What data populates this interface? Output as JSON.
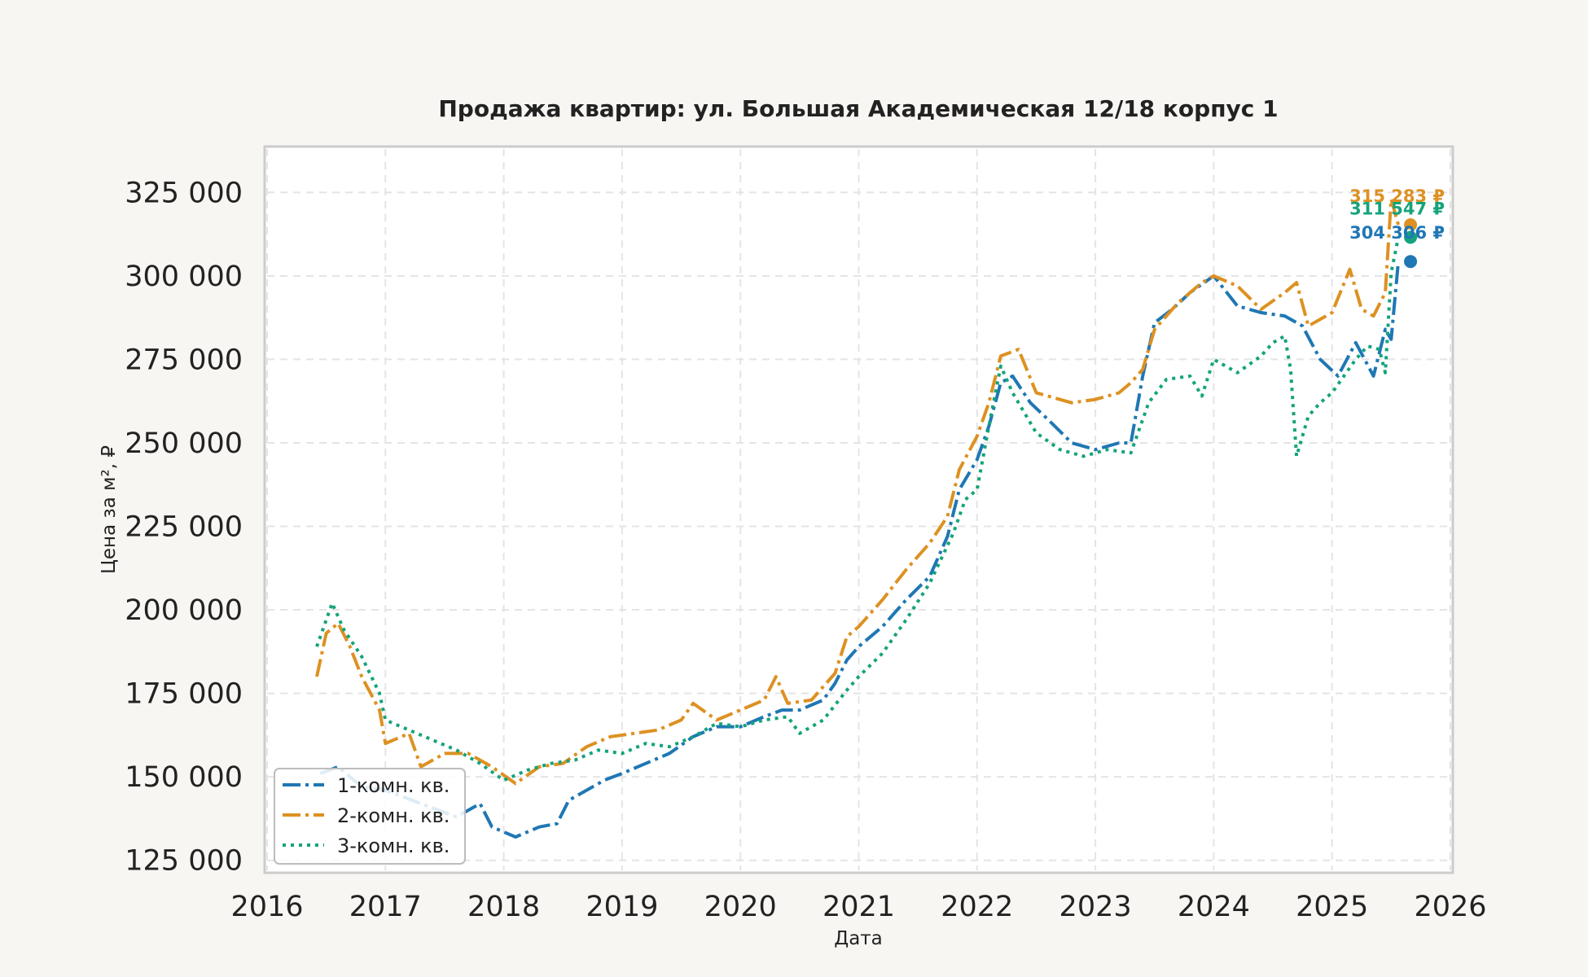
{
  "chart_data": {
    "type": "line",
    "title": "Продажа квартир: ул. Большая Академическая 12/18 корпус 1",
    "xlabel": "Дата",
    "ylabel": "Цена за м², ₽",
    "xlim": [
      2016,
      2026
    ],
    "ylim": [
      122000,
      338000
    ],
    "x_ticks": [
      "2016",
      "2017",
      "2018",
      "2019",
      "2020",
      "2021",
      "2022",
      "2023",
      "2024",
      "2025",
      "2026"
    ],
    "y_ticks": [
      "125 000",
      "150 000",
      "175 000",
      "200 000",
      "225 000",
      "250 000",
      "275 000",
      "300 000",
      "325 000"
    ],
    "grid": true,
    "legend_position": "lower-left",
    "series": [
      {
        "name": "1-комн. кв.",
        "color": "#1f77b4",
        "dash": "dashdot",
        "end_label": "304 306 ₽",
        "end_value": 304306,
        "points": [
          [
            2016.45,
            151000
          ],
          [
            2016.6,
            153000
          ],
          [
            2016.8,
            147000
          ],
          [
            2017.0,
            146000
          ],
          [
            2017.3,
            142000
          ],
          [
            2017.6,
            138000
          ],
          [
            2017.8,
            142000
          ],
          [
            2017.9,
            135000
          ],
          [
            2018.1,
            132000
          ],
          [
            2018.3,
            135000
          ],
          [
            2018.45,
            136000
          ],
          [
            2018.55,
            143000
          ],
          [
            2018.7,
            146000
          ],
          [
            2018.85,
            149000
          ],
          [
            2019.0,
            151000
          ],
          [
            2019.2,
            154000
          ],
          [
            2019.4,
            157000
          ],
          [
            2019.6,
            162000
          ],
          [
            2019.8,
            165000
          ],
          [
            2020.0,
            165000
          ],
          [
            2020.2,
            168000
          ],
          [
            2020.35,
            170000
          ],
          [
            2020.5,
            170000
          ],
          [
            2020.7,
            173000
          ],
          [
            2020.8,
            178000
          ],
          [
            2020.9,
            185000
          ],
          [
            2021.0,
            189000
          ],
          [
            2021.2,
            195000
          ],
          [
            2021.4,
            203000
          ],
          [
            2021.6,
            210000
          ],
          [
            2021.75,
            222000
          ],
          [
            2021.85,
            236000
          ],
          [
            2022.0,
            245000
          ],
          [
            2022.1,
            255000
          ],
          [
            2022.2,
            268000
          ],
          [
            2022.3,
            270000
          ],
          [
            2022.45,
            262000
          ],
          [
            2022.6,
            257000
          ],
          [
            2022.8,
            250000
          ],
          [
            2023.0,
            248000
          ],
          [
            2023.2,
            250000
          ],
          [
            2023.3,
            250000
          ],
          [
            2023.4,
            270000
          ],
          [
            2023.5,
            286000
          ],
          [
            2023.65,
            290000
          ],
          [
            2023.8,
            295000
          ],
          [
            2024.0,
            300000
          ],
          [
            2024.2,
            291000
          ],
          [
            2024.4,
            289000
          ],
          [
            2024.6,
            288000
          ],
          [
            2024.75,
            285000
          ],
          [
            2024.9,
            275000
          ],
          [
            2025.05,
            270000
          ],
          [
            2025.2,
            280000
          ],
          [
            2025.35,
            270000
          ],
          [
            2025.45,
            284000
          ],
          [
            2025.5,
            281000
          ],
          [
            2025.56,
            304306
          ]
        ]
      },
      {
        "name": "2-комн. кв.",
        "color": "#dd9122",
        "dash": "dashdot",
        "end_label": "315 283 ₽",
        "end_value": 315283,
        "points": [
          [
            2016.42,
            180000
          ],
          [
            2016.5,
            193000
          ],
          [
            2016.6,
            196000
          ],
          [
            2016.7,
            189000
          ],
          [
            2016.8,
            180000
          ],
          [
            2016.95,
            170000
          ],
          [
            2017.0,
            160000
          ],
          [
            2017.2,
            163000
          ],
          [
            2017.3,
            153000
          ],
          [
            2017.5,
            157000
          ],
          [
            2017.7,
            157000
          ],
          [
            2017.9,
            153000
          ],
          [
            2018.1,
            148000
          ],
          [
            2018.3,
            153000
          ],
          [
            2018.5,
            154000
          ],
          [
            2018.7,
            159000
          ],
          [
            2018.9,
            162000
          ],
          [
            2019.1,
            163000
          ],
          [
            2019.3,
            164000
          ],
          [
            2019.5,
            167000
          ],
          [
            2019.6,
            172000
          ],
          [
            2019.8,
            167000
          ],
          [
            2020.0,
            170000
          ],
          [
            2020.2,
            173000
          ],
          [
            2020.3,
            180000
          ],
          [
            2020.4,
            172000
          ],
          [
            2020.6,
            173000
          ],
          [
            2020.8,
            181000
          ],
          [
            2020.9,
            192000
          ],
          [
            2021.0,
            195000
          ],
          [
            2021.2,
            203000
          ],
          [
            2021.4,
            212000
          ],
          [
            2021.6,
            220000
          ],
          [
            2021.75,
            228000
          ],
          [
            2021.85,
            242000
          ],
          [
            2022.0,
            252000
          ],
          [
            2022.1,
            262000
          ],
          [
            2022.2,
            276000
          ],
          [
            2022.35,
            278000
          ],
          [
            2022.5,
            265000
          ],
          [
            2022.8,
            262000
          ],
          [
            2023.0,
            263000
          ],
          [
            2023.2,
            265000
          ],
          [
            2023.3,
            268000
          ],
          [
            2023.4,
            272000
          ],
          [
            2023.5,
            284000
          ],
          [
            2023.7,
            292000
          ],
          [
            2023.9,
            298000
          ],
          [
            2024.0,
            300000
          ],
          [
            2024.2,
            297000
          ],
          [
            2024.4,
            290000
          ],
          [
            2024.6,
            295000
          ],
          [
            2024.7,
            298000
          ],
          [
            2024.8,
            285000
          ],
          [
            2025.0,
            289000
          ],
          [
            2025.15,
            302000
          ],
          [
            2025.25,
            290000
          ],
          [
            2025.35,
            288000
          ],
          [
            2025.45,
            295000
          ],
          [
            2025.5,
            323000
          ],
          [
            2025.56,
            315283
          ]
        ]
      },
      {
        "name": "3-комн. кв.",
        "color": "#14a37b",
        "dash": "dotted",
        "end_label": "311 547 ₽",
        "end_value": 311547,
        "points": [
          [
            2016.42,
            189000
          ],
          [
            2016.55,
            202000
          ],
          [
            2016.65,
            194000
          ],
          [
            2016.8,
            186000
          ],
          [
            2016.95,
            175000
          ],
          [
            2017.0,
            167000
          ],
          [
            2017.2,
            164000
          ],
          [
            2017.4,
            161000
          ],
          [
            2017.6,
            158000
          ],
          [
            2017.8,
            154000
          ],
          [
            2018.0,
            149000
          ],
          [
            2018.2,
            152000
          ],
          [
            2018.4,
            154000
          ],
          [
            2018.6,
            155000
          ],
          [
            2018.8,
            158000
          ],
          [
            2019.0,
            157000
          ],
          [
            2019.2,
            160000
          ],
          [
            2019.4,
            159000
          ],
          [
            2019.6,
            162000
          ],
          [
            2019.8,
            166000
          ],
          [
            2020.0,
            165000
          ],
          [
            2020.2,
            167000
          ],
          [
            2020.4,
            168000
          ],
          [
            2020.5,
            163000
          ],
          [
            2020.7,
            167000
          ],
          [
            2020.9,
            176000
          ],
          [
            2021.0,
            180000
          ],
          [
            2021.2,
            187000
          ],
          [
            2021.4,
            197000
          ],
          [
            2021.6,
            208000
          ],
          [
            2021.8,
            223000
          ],
          [
            2021.9,
            233000
          ],
          [
            2022.0,
            236000
          ],
          [
            2022.1,
            255000
          ],
          [
            2022.2,
            273000
          ],
          [
            2022.3,
            265000
          ],
          [
            2022.5,
            253000
          ],
          [
            2022.7,
            248000
          ],
          [
            2022.9,
            246000
          ],
          [
            2023.1,
            248000
          ],
          [
            2023.3,
            247000
          ],
          [
            2023.45,
            262000
          ],
          [
            2023.6,
            269000
          ],
          [
            2023.8,
            270000
          ],
          [
            2023.9,
            264000
          ],
          [
            2024.0,
            275000
          ],
          [
            2024.2,
            271000
          ],
          [
            2024.4,
            276000
          ],
          [
            2024.5,
            280000
          ],
          [
            2024.6,
            282000
          ],
          [
            2024.65,
            272000
          ],
          [
            2024.7,
            246000
          ],
          [
            2024.8,
            258000
          ],
          [
            2024.9,
            262000
          ],
          [
            2025.0,
            265000
          ],
          [
            2025.2,
            275000
          ],
          [
            2025.3,
            279000
          ],
          [
            2025.4,
            278000
          ],
          [
            2025.45,
            271000
          ],
          [
            2025.5,
            301000
          ],
          [
            2025.56,
            311547
          ]
        ]
      }
    ]
  }
}
